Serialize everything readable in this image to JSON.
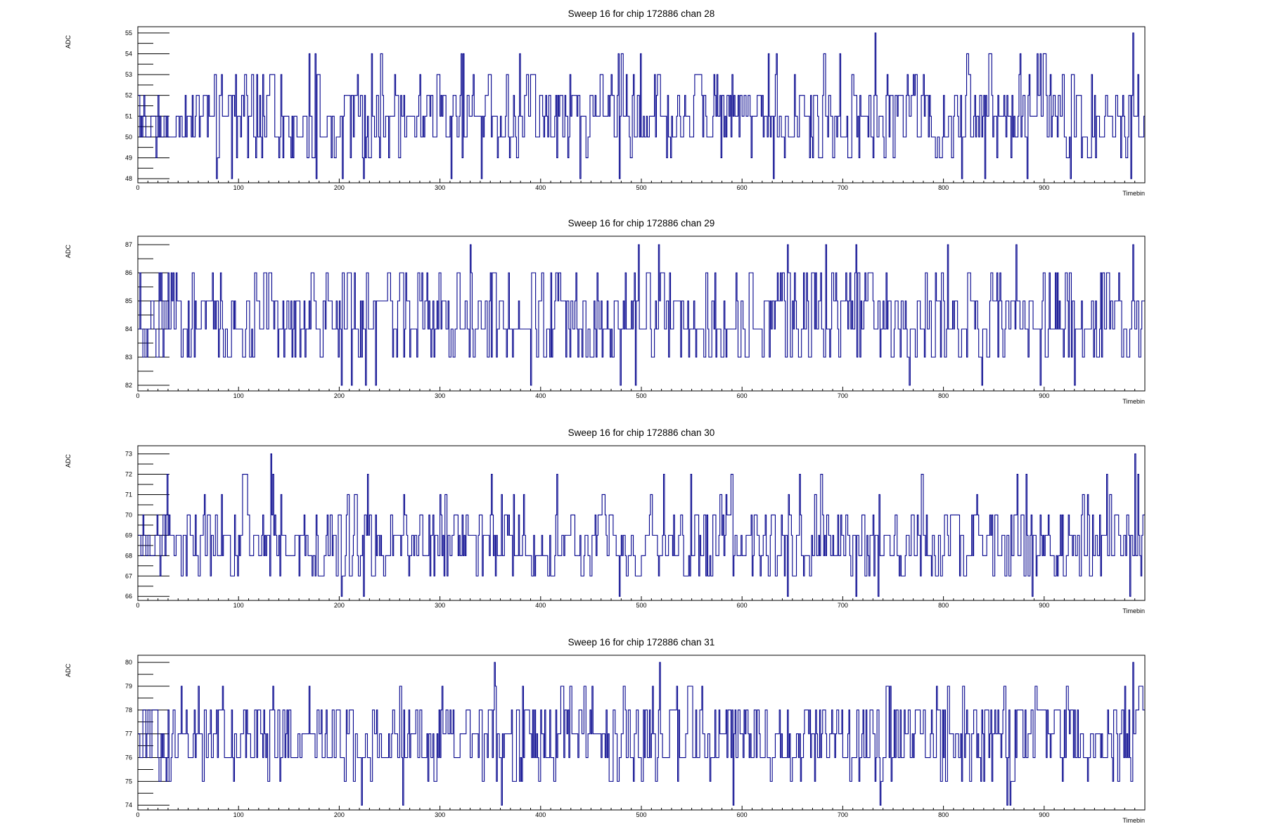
{
  "chart_data": [
    {
      "type": "line",
      "title": "Sweep 16 for chip 172886 chan 28",
      "xlabel": "Timebin",
      "ylabel": "ADC",
      "xlim": [
        0,
        1000
      ],
      "ylim": [
        47.8,
        55.3
      ],
      "x_ticks": [
        0,
        100,
        200,
        300,
        400,
        500,
        600,
        700,
        800,
        900
      ],
      "y_ticks": [
        48,
        49,
        50,
        51,
        52,
        53,
        54,
        55
      ],
      "baseline": 51,
      "levels": [
        48,
        49,
        50,
        51,
        52,
        53,
        54,
        55
      ],
      "weights": [
        0.03,
        0.06,
        0.28,
        0.33,
        0.22,
        0.05,
        0.02,
        0.01
      ],
      "spikes": [
        [
          732,
          55
        ],
        [
          988,
          55
        ],
        [
          203,
          54
        ],
        [
          379,
          54
        ],
        [
          893,
          54
        ],
        [
          77,
          53
        ],
        [
          97,
          53
        ],
        [
          113,
          53
        ],
        [
          180,
          53
        ],
        [
          255,
          53
        ],
        [
          333,
          53
        ],
        [
          350,
          53
        ],
        [
          513,
          53
        ],
        [
          575,
          53
        ],
        [
          590,
          53
        ],
        [
          764,
          53
        ],
        [
          947,
          53
        ],
        [
          993,
          53
        ],
        [
          78,
          48
        ],
        [
          93,
          48
        ],
        [
          177,
          48
        ],
        [
          203,
          48
        ],
        [
          224,
          48
        ],
        [
          311,
          48
        ],
        [
          341,
          48
        ],
        [
          439,
          48
        ],
        [
          478,
          48
        ],
        [
          631,
          48
        ],
        [
          818,
          48
        ],
        [
          841,
          48
        ],
        [
          883,
          48
        ],
        [
          926,
          48
        ],
        [
          986,
          48
        ]
      ],
      "seed": 2801
    },
    {
      "type": "line",
      "title": "Sweep 16 for chip 172886 chan 29",
      "xlabel": "Timebin",
      "ylabel": "ADC",
      "xlim": [
        0,
        1000
      ],
      "ylim": [
        81.8,
        87.3
      ],
      "x_ticks": [
        0,
        100,
        200,
        300,
        400,
        500,
        600,
        700,
        800,
        900
      ],
      "y_ticks": [
        82,
        83,
        84,
        85,
        86,
        87
      ],
      "baseline": 84,
      "levels": [
        82,
        83,
        84,
        85,
        86,
        87
      ],
      "weights": [
        0.02,
        0.17,
        0.36,
        0.31,
        0.12,
        0.02
      ],
      "spikes": [
        [
          330,
          87
        ],
        [
          390,
          87
        ],
        [
          497,
          87
        ],
        [
          517,
          87
        ],
        [
          645,
          87
        ],
        [
          683,
          87
        ],
        [
          713,
          87
        ],
        [
          804,
          87
        ],
        [
          872,
          87
        ],
        [
          988,
          87
        ],
        [
          202,
          82
        ],
        [
          212,
          82
        ],
        [
          226,
          82
        ],
        [
          236,
          82
        ],
        [
          390,
          82
        ],
        [
          479,
          82
        ],
        [
          494,
          82
        ],
        [
          766,
          82
        ],
        [
          838,
          82
        ],
        [
          896,
          82
        ],
        [
          930,
          82
        ]
      ],
      "seed": 2901
    },
    {
      "type": "line",
      "title": "Sweep 16 for chip 172886 chan 30",
      "xlabel": "Timebin",
      "ylabel": "ADC",
      "xlim": [
        0,
        1000
      ],
      "ylim": [
        65.8,
        73.4
      ],
      "x_ticks": [
        0,
        100,
        200,
        300,
        400,
        500,
        600,
        700,
        800,
        900
      ],
      "y_ticks": [
        66,
        67,
        68,
        69,
        70,
        71,
        72,
        73
      ],
      "baseline": 68,
      "levels": [
        66,
        67,
        68,
        69,
        70,
        71,
        72,
        73
      ],
      "weights": [
        0.02,
        0.1,
        0.33,
        0.32,
        0.18,
        0.04,
        0.007,
        0.003
      ],
      "spikes": [
        [
          132,
          73
        ],
        [
          990,
          73
        ],
        [
          29,
          72
        ],
        [
          134,
          72
        ],
        [
          351,
          72
        ],
        [
          735,
          72
        ],
        [
          882,
          72
        ],
        [
          993,
          72
        ],
        [
          202,
          66
        ],
        [
          224,
          66
        ],
        [
          478,
          66
        ],
        [
          645,
          66
        ],
        [
          713,
          66
        ],
        [
          735,
          66
        ],
        [
          888,
          66
        ],
        [
          985,
          66
        ]
      ],
      "seed": 3001
    },
    {
      "type": "line",
      "title": "Sweep 16 for chip 172886 chan 31",
      "xlabel": "Timebin",
      "ylabel": "ADC",
      "xlim": [
        0,
        1000
      ],
      "ylim": [
        73.8,
        80.3
      ],
      "x_ticks": [
        0,
        100,
        200,
        300,
        400,
        500,
        600,
        700,
        800,
        900
      ],
      "y_ticks": [
        74,
        75,
        76,
        77,
        78,
        79,
        80
      ],
      "baseline": 77,
      "levels": [
        74,
        75,
        76,
        77,
        78,
        79,
        80
      ],
      "weights": [
        0.01,
        0.06,
        0.31,
        0.3,
        0.28,
        0.035,
        0.005
      ],
      "spikes": [
        [
          354,
          80
        ],
        [
          518,
          80
        ],
        [
          988,
          80
        ],
        [
          222,
          74
        ],
        [
          263,
          74
        ],
        [
          361,
          74
        ],
        [
          591,
          74
        ],
        [
          737,
          74
        ],
        [
          863,
          74
        ],
        [
          866,
          74
        ]
      ],
      "seed": 3101
    }
  ]
}
